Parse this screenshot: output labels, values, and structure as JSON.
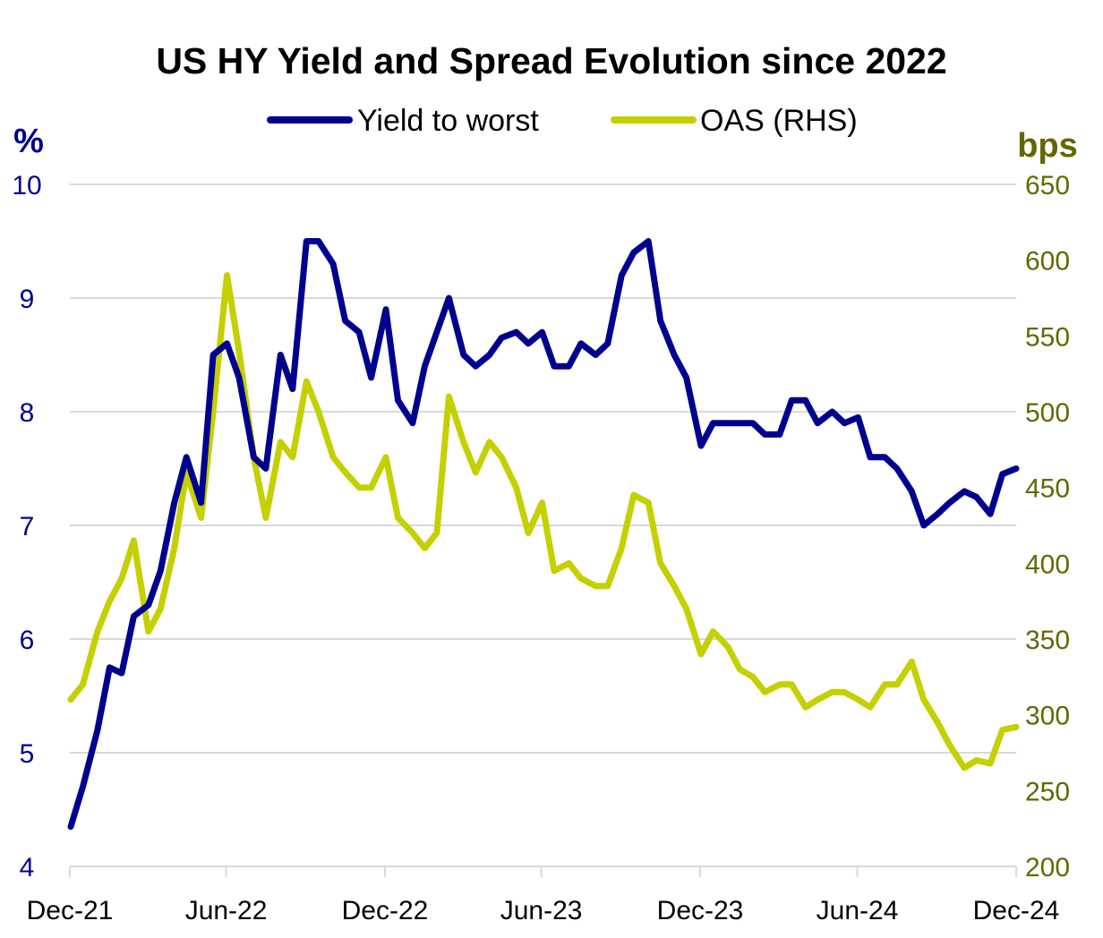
{
  "chart_data": {
    "type": "line",
    "title": "US HY Yield and Spread Evolution since 2022",
    "y_left_label": "%",
    "y_right_label": "bps",
    "ylim_left": [
      4,
      10
    ],
    "ylim_right": [
      200,
      650
    ],
    "y_left_ticks": [
      "4",
      "5",
      "6",
      "7",
      "8",
      "9",
      "10"
    ],
    "y_right_ticks": [
      "200",
      "250",
      "300",
      "350",
      "400",
      "450",
      "500",
      "550",
      "600",
      "650"
    ],
    "x_ticks": [
      {
        "date": "2021-12-31",
        "label": "Dec-21"
      },
      {
        "date": "2022-06-30",
        "label": "Jun-22"
      },
      {
        "date": "2022-12-31",
        "label": "Dec-22"
      },
      {
        "date": "2023-06-30",
        "label": "Jun-23"
      },
      {
        "date": "2023-12-31",
        "label": "Dec-23"
      },
      {
        "date": "2024-06-30",
        "label": "Jun-24"
      },
      {
        "date": "2024-12-31",
        "label": "Dec-24"
      }
    ],
    "xlim": [
      "2021-12-31",
      "2024-12-31"
    ],
    "grid": "horizontal",
    "legend_placement": "top-center",
    "x": [
      "2022-01-01",
      "2022-01-15",
      "2022-02-01",
      "2022-02-15",
      "2022-03-01",
      "2022-03-15",
      "2022-04-01",
      "2022-04-15",
      "2022-05-01",
      "2022-05-15",
      "2022-06-01",
      "2022-06-15",
      "2022-07-01",
      "2022-07-15",
      "2022-08-01",
      "2022-08-15",
      "2022-09-01",
      "2022-09-15",
      "2022-10-01",
      "2022-10-15",
      "2022-11-01",
      "2022-11-15",
      "2022-12-01",
      "2022-12-15",
      "2023-01-01",
      "2023-01-15",
      "2023-02-01",
      "2023-02-15",
      "2023-03-01",
      "2023-03-15",
      "2023-04-01",
      "2023-04-15",
      "2023-05-01",
      "2023-05-15",
      "2023-06-01",
      "2023-06-15",
      "2023-07-01",
      "2023-07-15",
      "2023-08-01",
      "2023-08-15",
      "2023-09-01",
      "2023-09-15",
      "2023-10-01",
      "2023-10-15",
      "2023-11-01",
      "2023-11-15",
      "2023-12-01",
      "2023-12-15",
      "2024-01-01",
      "2024-01-15",
      "2024-02-01",
      "2024-02-15",
      "2024-03-01",
      "2024-03-15",
      "2024-04-01",
      "2024-04-15",
      "2024-05-01",
      "2024-05-15",
      "2024-06-01",
      "2024-06-15",
      "2024-07-01",
      "2024-07-15",
      "2024-08-01",
      "2024-08-15",
      "2024-09-01",
      "2024-09-15",
      "2024-10-01",
      "2024-10-15",
      "2024-11-01",
      "2024-11-15",
      "2024-12-01",
      "2024-12-15",
      "2024-12-31"
    ],
    "series": [
      {
        "name": "Yield to worst",
        "axis": "left",
        "color": "#00008f",
        "values": [
          4.35,
          4.7,
          5.2,
          5.75,
          5.7,
          6.2,
          6.3,
          6.6,
          7.2,
          7.6,
          7.2,
          8.5,
          8.6,
          8.3,
          7.6,
          7.5,
          8.5,
          8.2,
          9.5,
          9.5,
          9.3,
          8.8,
          8.7,
          8.3,
          8.9,
          8.1,
          7.9,
          8.4,
          8.7,
          9.0,
          8.5,
          8.4,
          8.5,
          8.65,
          8.7,
          8.6,
          8.7,
          8.4,
          8.4,
          8.6,
          8.5,
          8.6,
          9.2,
          9.4,
          9.5,
          8.8,
          8.5,
          8.3,
          7.7,
          7.9,
          7.9,
          7.9,
          7.9,
          7.8,
          7.8,
          8.1,
          8.1,
          7.9,
          8.0,
          7.9,
          7.95,
          7.6,
          7.6,
          7.5,
          7.3,
          7.0,
          7.1,
          7.2,
          7.3,
          7.25,
          7.1,
          7.45,
          7.5
        ]
      },
      {
        "name": "OAS (RHS)",
        "axis": "right",
        "color": "#c4d000",
        "values": [
          310,
          320,
          355,
          375,
          390,
          415,
          355,
          370,
          410,
          460,
          430,
          500,
          590,
          540,
          470,
          430,
          480,
          470,
          520,
          500,
          470,
          460,
          450,
          450,
          470,
          430,
          420,
          410,
          420,
          510,
          480,
          460,
          480,
          470,
          450,
          420,
          440,
          395,
          400,
          390,
          385,
          385,
          410,
          445,
          440,
          400,
          385,
          370,
          340,
          355,
          345,
          330,
          325,
          315,
          320,
          320,
          305,
          310,
          315,
          315,
          310,
          305,
          320,
          320,
          335,
          310,
          295,
          280,
          265,
          270,
          268,
          290,
          292
        ]
      }
    ]
  },
  "colors": {
    "left_axis": "#00008f",
    "right_axis": "#666600",
    "grid": "#d9d9d9"
  }
}
